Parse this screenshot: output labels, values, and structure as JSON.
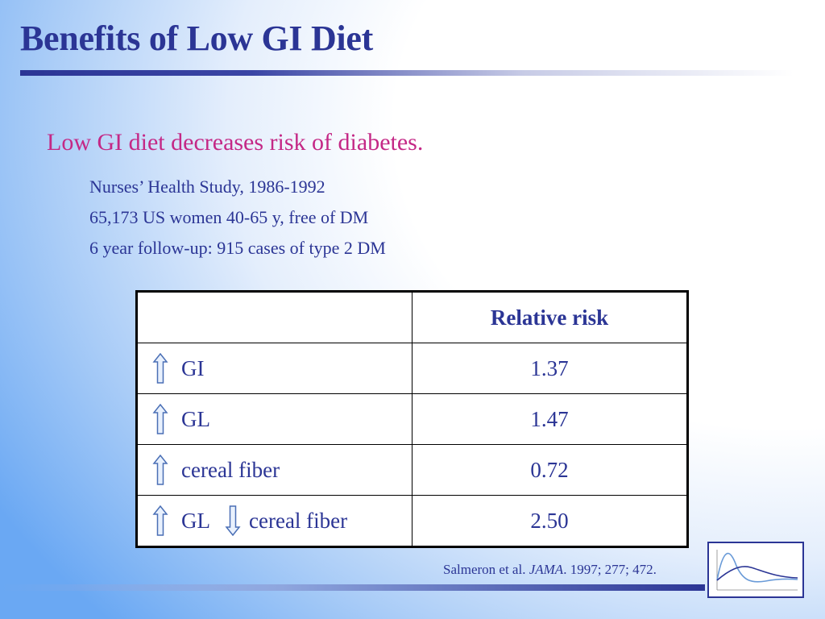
{
  "slide": {
    "title": "Benefits of Low GI Diet",
    "subtitle": "Low GI diet decreases risk of diabetes.",
    "bullets": [
      "Nurses’ Health Study, 1986-1992",
      "65,173 US women 40-65 y, free of DM",
      "6 year follow-up: 915 cases of type 2 DM"
    ]
  },
  "table": {
    "header": [
      "",
      "Relative risk"
    ],
    "rows": [
      {
        "arrow": "up-arrow-icon",
        "label": "GI",
        "value": "1.37"
      },
      {
        "arrow": "up-arrow-icon",
        "label": "GL",
        "value": "1.47"
      },
      {
        "arrow": "up-arrow-icon",
        "label": "cereal fiber",
        "value": "0.72"
      },
      {
        "arrow": "up-arrow-icon",
        "label": "GL",
        "arrow2": "down-arrow-icon",
        "label2": "cereal fiber",
        "value": "2.50"
      }
    ]
  },
  "citation": {
    "authors": "Salmeron et al.",
    "journal": "JAMA",
    "details": ". 1997; 277; 472."
  },
  "colors": {
    "title": "#2b3595",
    "subtitle": "#c42886",
    "text": "#2b3595"
  },
  "thumbnail_icon": "glycemic-response-curves-icon"
}
